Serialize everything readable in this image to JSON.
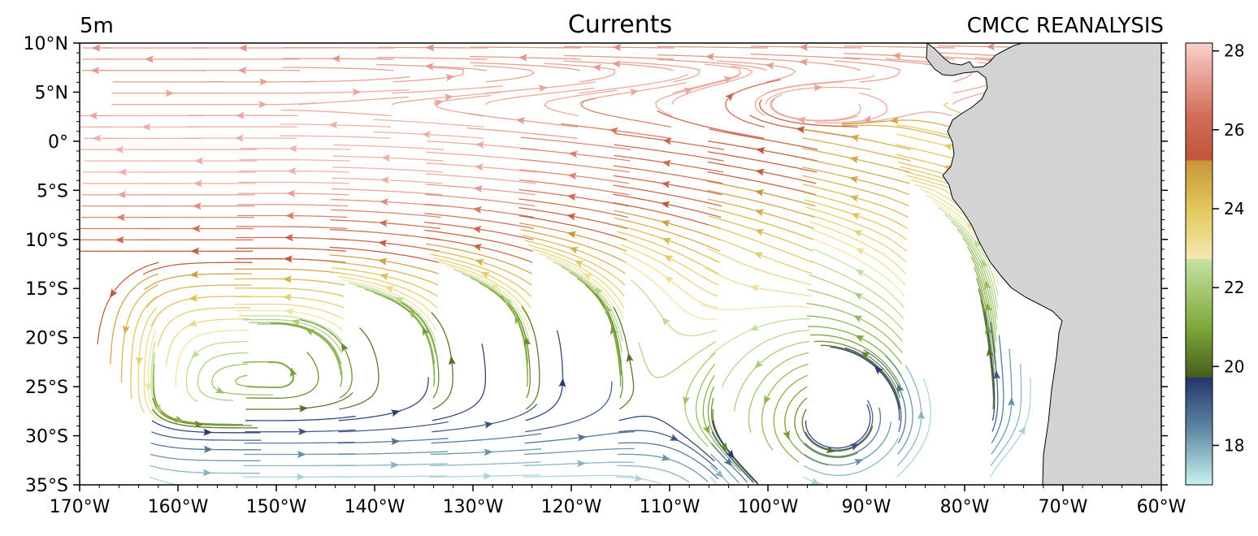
{
  "header": {
    "depth": "5m",
    "title": "Currents",
    "source": "CMCC REANALYSIS"
  },
  "map": {
    "lon_range": [
      -170,
      -60
    ],
    "lat_range": [
      -35,
      10
    ],
    "land_color": "#d3d3d3",
    "x_ticks": [
      {
        "lon": -170,
        "label": "170°W"
      },
      {
        "lon": -160,
        "label": "160°W"
      },
      {
        "lon": -150,
        "label": "150°W"
      },
      {
        "lon": -140,
        "label": "140°W"
      },
      {
        "lon": -130,
        "label": "130°W"
      },
      {
        "lon": -120,
        "label": "120°W"
      },
      {
        "lon": -110,
        "label": "110°W"
      },
      {
        "lon": -100,
        "label": "100°W"
      },
      {
        "lon": -90,
        "label": "90°W"
      },
      {
        "lon": -80,
        "label": "80°W"
      },
      {
        "lon": -70,
        "label": "70°W"
      },
      {
        "lon": -60,
        "label": "60°W"
      }
    ],
    "y_ticks": [
      {
        "lat": 10,
        "label": "10°N"
      },
      {
        "lat": 5,
        "label": "5°N"
      },
      {
        "lat": 0,
        "label": "0°"
      },
      {
        "lat": -5,
        "label": "5°S"
      },
      {
        "lat": -10,
        "label": "10°S"
      },
      {
        "lat": -15,
        "label": "15°S"
      },
      {
        "lat": -20,
        "label": "20°S"
      },
      {
        "lat": -25,
        "label": "25°S"
      },
      {
        "lat": -30,
        "label": "30°S"
      },
      {
        "lat": -35,
        "label": "35°S"
      }
    ]
  },
  "colorbar": {
    "min": 17,
    "max": 28.2,
    "ticks": [
      {
        "value": 18,
        "label": "18"
      },
      {
        "value": 20,
        "label": "20"
      },
      {
        "value": 22,
        "label": "22"
      },
      {
        "value": 24,
        "label": "24"
      },
      {
        "value": 26,
        "label": "26"
      },
      {
        "value": 28,
        "label": "28"
      }
    ],
    "stops": [
      {
        "value": 17.0,
        "color": "#c8f2ee"
      },
      {
        "value": 18.4,
        "color": "#5e89a3"
      },
      {
        "value": 19.7,
        "color": "#26356e"
      },
      {
        "value": 19.75,
        "color": "#485e1c"
      },
      {
        "value": 21.0,
        "color": "#7fa83a"
      },
      {
        "value": 22.7,
        "color": "#c4e2a2"
      },
      {
        "value": 22.75,
        "color": "#f3e8b0"
      },
      {
        "value": 24.0,
        "color": "#e1c75a"
      },
      {
        "value": 25.2,
        "color": "#c8953a"
      },
      {
        "value": 25.25,
        "color": "#c0553a"
      },
      {
        "value": 26.4,
        "color": "#d26f5a"
      },
      {
        "value": 28.2,
        "color": "#fbd0cc"
      }
    ]
  }
}
